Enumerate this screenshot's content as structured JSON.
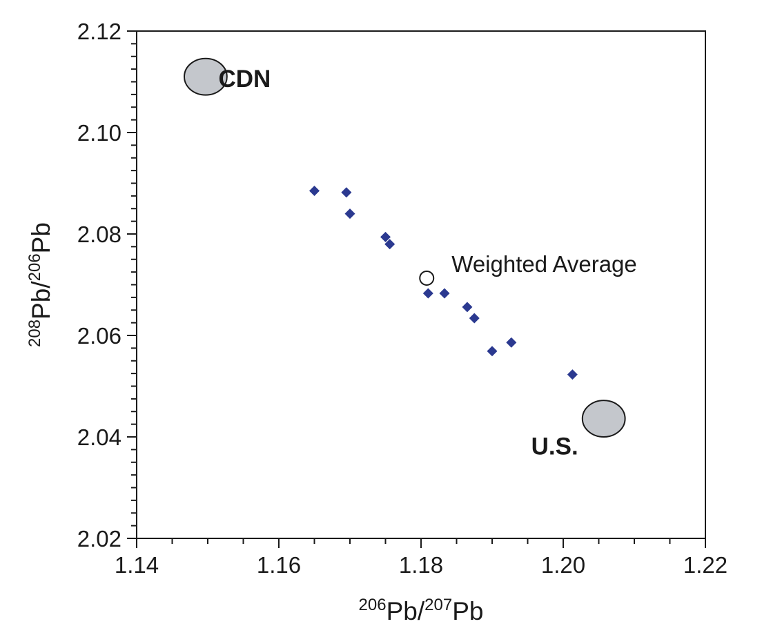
{
  "chart_data": {
    "type": "scatter",
    "title": "",
    "xlim": [
      1.14,
      1.22
    ],
    "ylim": [
      2.02,
      2.12
    ],
    "x_ticks": [
      "1.14",
      "1.16",
      "1.18",
      "1.20",
      "1.22"
    ],
    "y_ticks": [
      "2.02",
      "2.04",
      "2.06",
      "2.08",
      "2.10",
      "2.12"
    ],
    "x_minor_step": 0.005,
    "y_minor_step": 0.0025,
    "xlabel": {
      "sup1": "206",
      "main1": "Pb/",
      "sup2": "207",
      "main2": "Pb"
    },
    "ylabel": {
      "sup1": "208",
      "main1": "Pb/",
      "sup2": "206",
      "main2": "Pb"
    },
    "grid": false,
    "colors": {
      "samples": "#2b3990",
      "reference_fill": "#c4c7cc",
      "reference_stroke": "#1a1a1a",
      "average_fill": "#ffffff",
      "axis": "#1a1a1a"
    },
    "series": [
      {
        "marker": "diamond",
        "points": [
          {
            "x": 1.165,
            "y": 2.0885
          },
          {
            "x": 1.1695,
            "y": 2.0882
          },
          {
            "x": 1.17,
            "y": 2.084
          },
          {
            "x": 1.175,
            "y": 2.0794
          },
          {
            "x": 1.1756,
            "y": 2.078
          },
          {
            "x": 1.181,
            "y": 2.0683
          },
          {
            "x": 1.1833,
            "y": 2.0683
          },
          {
            "x": 1.1865,
            "y": 2.0656
          },
          {
            "x": 1.1875,
            "y": 2.0634
          },
          {
            "x": 1.19,
            "y": 2.0569
          },
          {
            "x": 1.1927,
            "y": 2.0586
          },
          {
            "x": 1.2013,
            "y": 2.0523
          }
        ]
      },
      {
        "name": "Weighted Average",
        "marker": "open-circle",
        "points": [
          {
            "x": 1.1808,
            "y": 2.0713
          }
        ]
      }
    ],
    "references": [
      {
        "name": "CDN",
        "x": 1.1497,
        "y": 2.111,
        "rx": 0.003,
        "ry": 0.0036
      },
      {
        "name": "U.S.",
        "x": 1.2057,
        "y": 2.0436,
        "rx": 0.003,
        "ry": 0.0036
      }
    ],
    "annotations": [
      {
        "text": "CDN",
        "x": 1.1515,
        "y": 2.109,
        "bold": true
      },
      {
        "text": "Weighted Average",
        "x": 1.1843,
        "y": 2.0725,
        "bold": false
      },
      {
        "text": "U.S.",
        "x": 1.1955,
        "y": 2.0365,
        "bold": true
      }
    ]
  }
}
